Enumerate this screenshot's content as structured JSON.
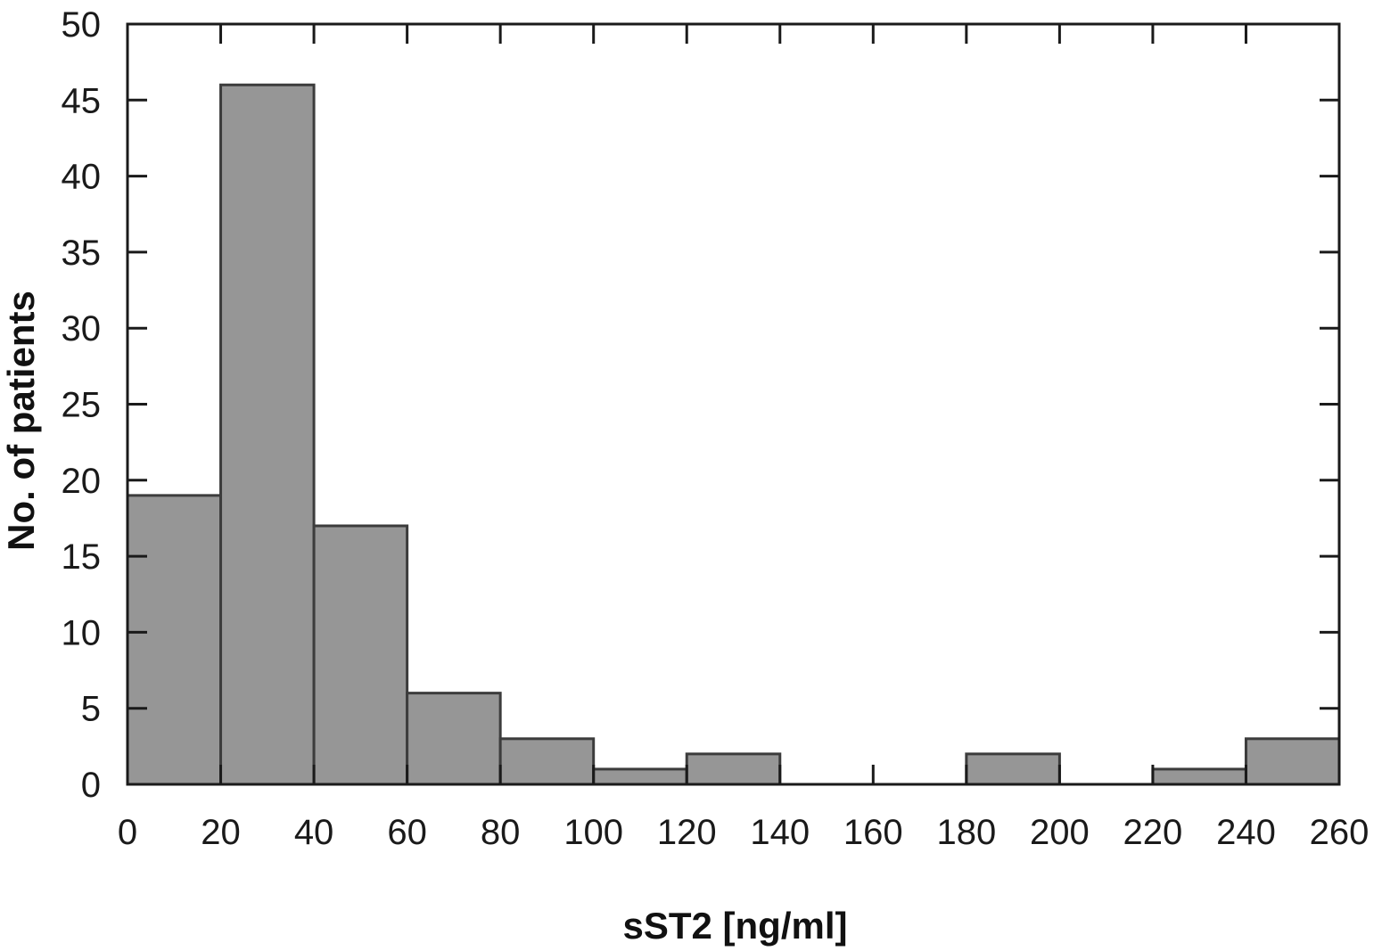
{
  "chart_data": {
    "type": "bar",
    "subtype": "histogram",
    "title": "",
    "xlabel": "sST2 [ng/ml]",
    "ylabel": "No. of patients",
    "bin_edges": [
      0,
      20,
      40,
      60,
      80,
      100,
      120,
      140,
      160,
      180,
      200,
      220,
      240,
      260
    ],
    "values": [
      19,
      46,
      17,
      6,
      3,
      1,
      2,
      0,
      0,
      2,
      0,
      1,
      3
    ],
    "xlim": [
      0,
      260
    ],
    "ylim": [
      0,
      50
    ],
    "x_ticks": [
      "0",
      "20",
      "40",
      "60",
      "80",
      "100",
      "120",
      "140",
      "160",
      "180",
      "200",
      "220",
      "240",
      "260"
    ],
    "y_ticks": [
      "0",
      "5",
      "10",
      "15",
      "20",
      "25",
      "30",
      "35",
      "40",
      "45",
      "50"
    ],
    "grid": false,
    "bar_color": "#969696",
    "bar_edge_color": "#3c3c3c"
  }
}
